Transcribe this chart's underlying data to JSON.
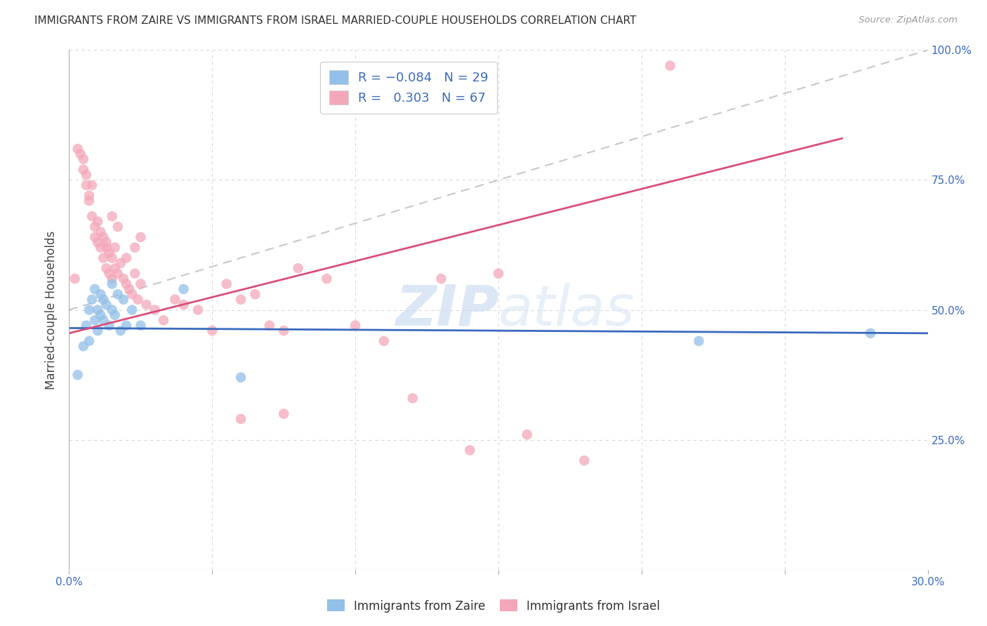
{
  "title": "IMMIGRANTS FROM ZAIRE VS IMMIGRANTS FROM ISRAEL MARRIED-COUPLE HOUSEHOLDS CORRELATION CHART",
  "source": "Source: ZipAtlas.com",
  "ylabel": "Married-couple Households",
  "blue_label": "Immigrants from Zaire",
  "pink_label": "Immigrants from Israel",
  "blue_R": -0.084,
  "blue_N": 29,
  "pink_R": 0.303,
  "pink_N": 67,
  "blue_color": "#92c0e8",
  "pink_color": "#f4a7b9",
  "blue_line_color": "#3a6abf",
  "pink_line_color": "#d94f7a",
  "diagonal_color": "#c8c8c8",
  "watermark_zip": "ZIP",
  "watermark_atlas": "atlas",
  "xlim": [
    0.0,
    0.3
  ],
  "ylim": [
    0.0,
    1.0
  ],
  "xticks": [
    0.0,
    0.05,
    0.1,
    0.15,
    0.2,
    0.25,
    0.3
  ],
  "yticks": [
    0.0,
    0.25,
    0.5,
    0.75,
    1.0
  ],
  "blue_scatter_x": [
    0.003,
    0.005,
    0.006,
    0.007,
    0.007,
    0.008,
    0.009,
    0.009,
    0.01,
    0.01,
    0.011,
    0.011,
    0.012,
    0.012,
    0.013,
    0.014,
    0.015,
    0.015,
    0.016,
    0.017,
    0.018,
    0.019,
    0.02,
    0.022,
    0.025,
    0.04,
    0.06,
    0.22,
    0.28
  ],
  "blue_scatter_y": [
    0.375,
    0.43,
    0.47,
    0.44,
    0.5,
    0.52,
    0.48,
    0.54,
    0.5,
    0.46,
    0.53,
    0.49,
    0.52,
    0.48,
    0.51,
    0.47,
    0.55,
    0.5,
    0.49,
    0.53,
    0.46,
    0.52,
    0.47,
    0.5,
    0.47,
    0.54,
    0.37,
    0.44,
    0.455
  ],
  "pink_scatter_x": [
    0.002,
    0.003,
    0.004,
    0.005,
    0.005,
    0.006,
    0.006,
    0.007,
    0.007,
    0.008,
    0.008,
    0.009,
    0.009,
    0.01,
    0.01,
    0.011,
    0.011,
    0.012,
    0.012,
    0.013,
    0.013,
    0.014,
    0.014,
    0.015,
    0.015,
    0.016,
    0.016,
    0.017,
    0.018,
    0.019,
    0.02,
    0.021,
    0.022,
    0.023,
    0.024,
    0.025,
    0.027,
    0.03,
    0.033,
    0.037,
    0.04,
    0.045,
    0.05,
    0.055,
    0.06,
    0.065,
    0.07,
    0.075,
    0.08,
    0.09,
    0.1,
    0.11,
    0.13,
    0.15,
    0.013,
    0.015,
    0.017,
    0.02,
    0.023,
    0.025,
    0.06,
    0.075,
    0.12,
    0.14,
    0.16,
    0.18,
    0.21
  ],
  "pink_scatter_y": [
    0.56,
    0.81,
    0.8,
    0.79,
    0.77,
    0.76,
    0.74,
    0.72,
    0.71,
    0.74,
    0.68,
    0.66,
    0.64,
    0.67,
    0.63,
    0.65,
    0.62,
    0.64,
    0.6,
    0.63,
    0.58,
    0.61,
    0.57,
    0.6,
    0.56,
    0.62,
    0.58,
    0.57,
    0.59,
    0.56,
    0.55,
    0.54,
    0.53,
    0.57,
    0.52,
    0.55,
    0.51,
    0.5,
    0.48,
    0.52,
    0.51,
    0.5,
    0.46,
    0.55,
    0.52,
    0.53,
    0.47,
    0.46,
    0.58,
    0.56,
    0.47,
    0.44,
    0.56,
    0.57,
    0.62,
    0.68,
    0.66,
    0.6,
    0.62,
    0.64,
    0.29,
    0.3,
    0.33,
    0.23,
    0.26,
    0.21,
    0.97
  ],
  "background_color": "#ffffff",
  "grid_color": "#d8d8d8"
}
